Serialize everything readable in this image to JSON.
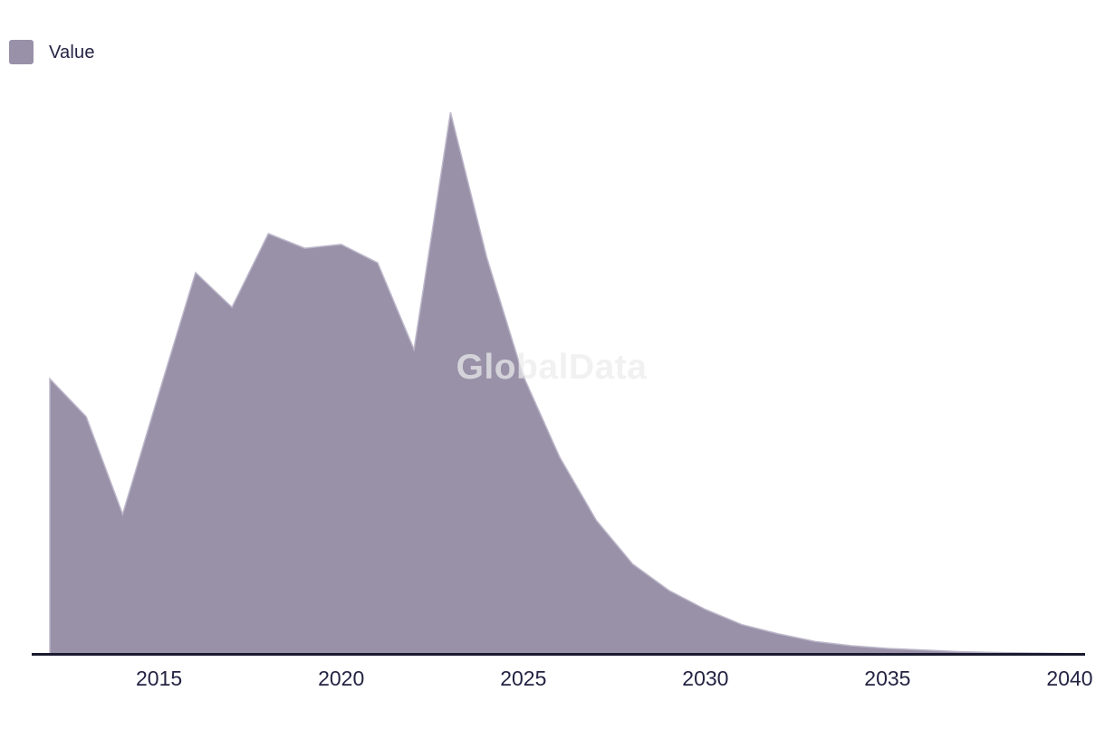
{
  "legend": {
    "label": "Value"
  },
  "watermark": "GlobalData",
  "colors": {
    "background": "#ffffff",
    "area_fill": "#9891a8",
    "area_stroke": "#bdb7ca",
    "axis_line": "#1a1a30",
    "text": "#232343",
    "watermark": "#ededee"
  },
  "chart_data": {
    "type": "area",
    "title": "",
    "xlabel": "",
    "ylabel": "",
    "x": [
      2012,
      2013,
      2014,
      2015,
      2016,
      2017,
      2018,
      2019,
      2020,
      2021,
      2022,
      2023,
      2024,
      2025,
      2026,
      2027,
      2028,
      2029,
      2030,
      2031,
      2032,
      2033,
      2034,
      2035,
      2036,
      2037,
      2038,
      2039,
      2040
    ],
    "series": [
      {
        "name": "Value",
        "values": [
          50.8,
          43.8,
          25.8,
          48.2,
          70.4,
          64.0,
          77.6,
          74.9,
          75.6,
          72.2,
          56.2,
          100.0,
          73.1,
          51.3,
          36.3,
          24.7,
          16.6,
          11.7,
          8.2,
          5.4,
          3.7,
          2.3,
          1.5,
          1.0,
          0.7,
          0.4,
          0.25,
          0.15,
          0.05
        ]
      }
    ],
    "x_ticks": [
      "2015",
      "2020",
      "2025",
      "2030",
      "2035",
      "2040"
    ],
    "xlim": [
      2012,
      2040
    ],
    "ylim": [
      0,
      105
    ],
    "value_scale": "relative, peak = 100 (no y-axis shown in chart)",
    "y_axis_visible": false,
    "grid": false,
    "legend_position": "top-left"
  }
}
